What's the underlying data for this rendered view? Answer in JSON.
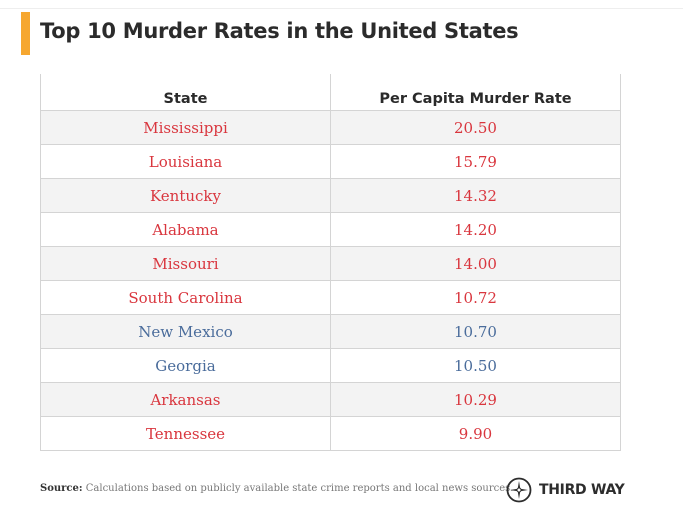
{
  "title": "Top 10 Murder Rates in the United States",
  "colors": {
    "accent_bar": "#f6a730",
    "red_party": "#d9363e",
    "blue_party": "#4a6c9b"
  },
  "table": {
    "headers": [
      "State",
      "Per Capita Murder Rate"
    ],
    "rows": [
      {
        "state": "Mississippi",
        "rate": "20.50",
        "color": "red"
      },
      {
        "state": "Louisiana",
        "rate": "15.79",
        "color": "red"
      },
      {
        "state": "Kentucky",
        "rate": "14.32",
        "color": "red"
      },
      {
        "state": "Alabama",
        "rate": "14.20",
        "color": "red"
      },
      {
        "state": "Missouri",
        "rate": "14.00",
        "color": "red"
      },
      {
        "state": "South Carolina",
        "rate": "10.72",
        "color": "red"
      },
      {
        "state": "New Mexico",
        "rate": "10.70",
        "color": "blue"
      },
      {
        "state": "Georgia",
        "rate": "10.50",
        "color": "blue"
      },
      {
        "state": "Arkansas",
        "rate": "10.29",
        "color": "red"
      },
      {
        "state": "Tennessee",
        "rate": "9.90",
        "color": "red"
      }
    ]
  },
  "chart_data": {
    "type": "table",
    "title": "Top 10 Murder Rates in the United States",
    "columns": [
      "State",
      "Per Capita Murder Rate"
    ],
    "categories": [
      "Mississippi",
      "Louisiana",
      "Kentucky",
      "Alabama",
      "Missouri",
      "South Carolina",
      "New Mexico",
      "Georgia",
      "Arkansas",
      "Tennessee"
    ],
    "values": [
      20.5,
      15.79,
      14.32,
      14.2,
      14.0,
      10.72,
      10.7,
      10.5,
      10.29,
      9.9
    ]
  },
  "footer": {
    "source_label": "Source:",
    "source_text": "Calculations based on publicly available state crime reports and local news sources.",
    "logo_text": "THIRD WAY",
    "logo_icon": "compass-icon"
  }
}
